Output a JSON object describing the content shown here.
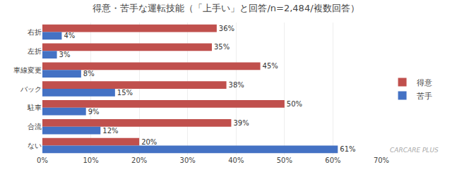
{
  "chart_data": {
    "type": "bar",
    "orientation": "horizontal",
    "title": "得意・苦手な運転技能（「上手い」と回答/n=2,484/複数回答）",
    "categories": [
      "右折",
      "左折",
      "車線変更",
      "バック",
      "駐車",
      "合流",
      "ない"
    ],
    "series": [
      {
        "name": "得意",
        "color": "#c0504d",
        "values": [
          36,
          35,
          45,
          38,
          50,
          39,
          20
        ],
        "value_labels": [
          "36%",
          "35%",
          "45%",
          "38%",
          "50%",
          "39%",
          "20%"
        ]
      },
      {
        "name": "苦手",
        "color": "#4472c4",
        "values": [
          4,
          3,
          8,
          15,
          9,
          12,
          61
        ],
        "value_labels": [
          "4%",
          "3%",
          "8%",
          "15%",
          "9%",
          "12%",
          "61%"
        ]
      }
    ],
    "xlim": [
      0,
      70
    ],
    "xticks": [
      {
        "value": 0,
        "label": "0%"
      },
      {
        "value": 10,
        "label": "10%"
      },
      {
        "value": 20,
        "label": "20%"
      },
      {
        "value": 30,
        "label": "30%"
      },
      {
        "value": 40,
        "label": "40%"
      },
      {
        "value": 50,
        "label": "50%"
      },
      {
        "value": 60,
        "label": "60%"
      },
      {
        "value": 70,
        "label": "70%"
      }
    ],
    "grid": true,
    "legend": "right",
    "data_labels": true,
    "annotations": [
      "CARCARE PLUS"
    ]
  }
}
